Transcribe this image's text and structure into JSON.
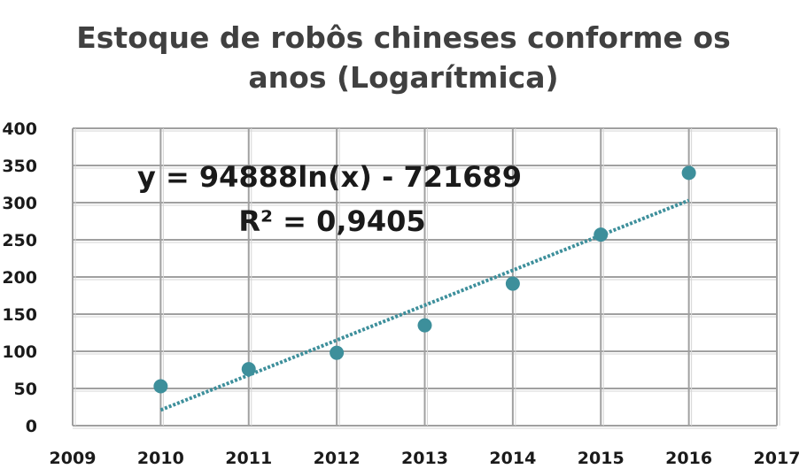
{
  "chart_data": {
    "type": "scatter",
    "title": "Estoque de robôs chineses conforme os anos (Logarítmica)",
    "title_lines": [
      "Estoque de robôs chineses conforme os",
      "anos (Logarítmica)"
    ],
    "xlabel": "",
    "ylabel": "",
    "xlim": [
      2009,
      2017
    ],
    "ylim": [
      0,
      400
    ],
    "x_ticks": [
      "2009",
      "2010",
      "2011",
      "2012",
      "2013",
      "2014",
      "2015",
      "2016",
      "2017"
    ],
    "y_ticks": [
      "0",
      "50",
      "100",
      "150",
      "200",
      "250",
      "300",
      "350",
      "400"
    ],
    "grid": true,
    "series": [
      {
        "x": [
          2010,
          2011,
          2012,
          2013,
          2014,
          2015,
          2016
        ],
        "y": [
          53,
          76,
          98,
          135,
          191,
          257,
          340
        ]
      }
    ],
    "trendline": {
      "type": "logarithmic",
      "equation": "y = 94888ln(x) - 721689",
      "r_squared": "R² = 0,9405",
      "x_range": [
        2010,
        2016
      ],
      "y_range": [
        21,
        303
      ]
    },
    "colors": {
      "marker": "#3d8f9b",
      "trendline": "#3d8f9b",
      "grid": "#a0a0a0"
    }
  }
}
